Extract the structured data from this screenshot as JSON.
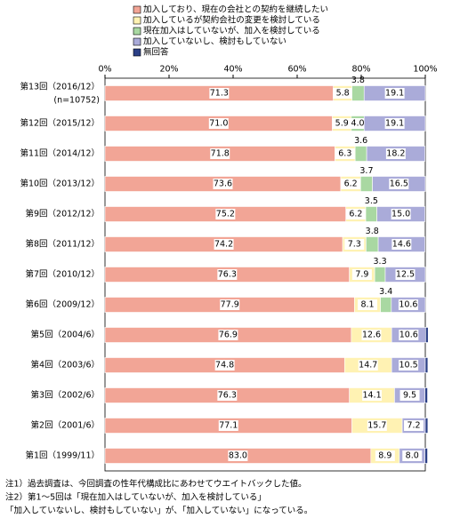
{
  "chart_data": {
    "type": "stacked-bar-horizontal",
    "categories": [
      "第13回（2016/12）",
      "第12回（2015/12）",
      "第11回（2014/12）",
      "第10回（2013/12）",
      "第9回（2012/12）",
      "第8回（2011/12）",
      "第7回（2010/12）",
      "第6回（2009/12）",
      "第5回（2004/6）",
      "第4回（2003/6）",
      "第3回（2002/6）",
      "第2回（2001/6）",
      "第1回（1999/11）"
    ],
    "category_note": "(n=10752)",
    "series": [
      {
        "name": "加入しており、現在の会社との契約を継続したい",
        "color": "#f2a596",
        "values": [
          71.3,
          71.0,
          71.8,
          73.6,
          75.2,
          74.2,
          76.3,
          77.9,
          76.9,
          74.8,
          76.3,
          77.1,
          83.0
        ],
        "value_labels": [
          "71.3",
          "71.0",
          "71.8",
          "73.6",
          "75.2",
          "74.2",
          "76.3",
          "77.9",
          "76.9",
          "74.8",
          "76.3",
          "77.1",
          "83.0"
        ]
      },
      {
        "name": "加入しているが契約会社の変更を検討している",
        "color": "#fff2b3",
        "values": [
          5.8,
          5.9,
          6.3,
          6.2,
          6.2,
          7.3,
          7.9,
          8.1,
          12.6,
          14.7,
          14.1,
          15.7,
          8.9
        ],
        "value_labels": [
          "5.8",
          "5.9",
          "6.3",
          "6.2",
          "6.2",
          "7.3",
          "7.9",
          "8.1",
          "12.6",
          "14.7",
          "14.1",
          "15.7",
          "8.9"
        ]
      },
      {
        "name": "現在加入はしていないが、加入を検討している",
        "color": "#a9d8a2",
        "values": [
          3.8,
          4.0,
          3.6,
          3.7,
          3.5,
          3.8,
          3.3,
          3.4,
          0,
          0,
          0,
          0,
          0
        ],
        "value_labels": [
          "3.8",
          "4.0",
          "3.6",
          "3.7",
          "3.5",
          "3.8",
          "3.3",
          "3.4",
          null,
          null,
          null,
          null,
          null
        ]
      },
      {
        "name": "加入していないし、検討もしていない",
        "color": "#aaabd9",
        "values": [
          19.1,
          19.1,
          18.2,
          16.5,
          15.0,
          14.6,
          12.5,
          10.6,
          10.6,
          10.5,
          9.5,
          7.2,
          8.0
        ],
        "value_labels": [
          "19.1",
          "19.1",
          "18.2",
          "16.5",
          "15.0",
          "14.6",
          "12.5",
          "10.6",
          "10.6",
          "10.5",
          "9.5",
          "7.2",
          "8.0"
        ]
      },
      {
        "name": "無回答",
        "color": "#2b3f86",
        "values": [
          0,
          0,
          0,
          0,
          0,
          0,
          0,
          0,
          0.8,
          0.8,
          0.8,
          0.8,
          0.8
        ],
        "value_labels": [
          null,
          null,
          null,
          null,
          null,
          null,
          null,
          null,
          null,
          null,
          null,
          null,
          null
        ]
      }
    ],
    "xlim": [
      0,
      100
    ],
    "xticks": [
      {
        "value": 0,
        "label": "0%"
      },
      {
        "value": 20,
        "label": "20%"
      },
      {
        "value": 40,
        "label": "40%"
      },
      {
        "value": 60,
        "label": "60%"
      },
      {
        "value": 80,
        "label": "80%"
      },
      {
        "value": 100,
        "label": "100%"
      }
    ],
    "notes": [
      "注1）過去調査は、今回調査の性年代構成比にあわせてウエイトバックした値。",
      "注2）第1～5回は「現在加入はしていないが、加入を検討している」",
      "「加入していないし、検討もしていない」が、「加入していない」になっている。"
    ]
  }
}
